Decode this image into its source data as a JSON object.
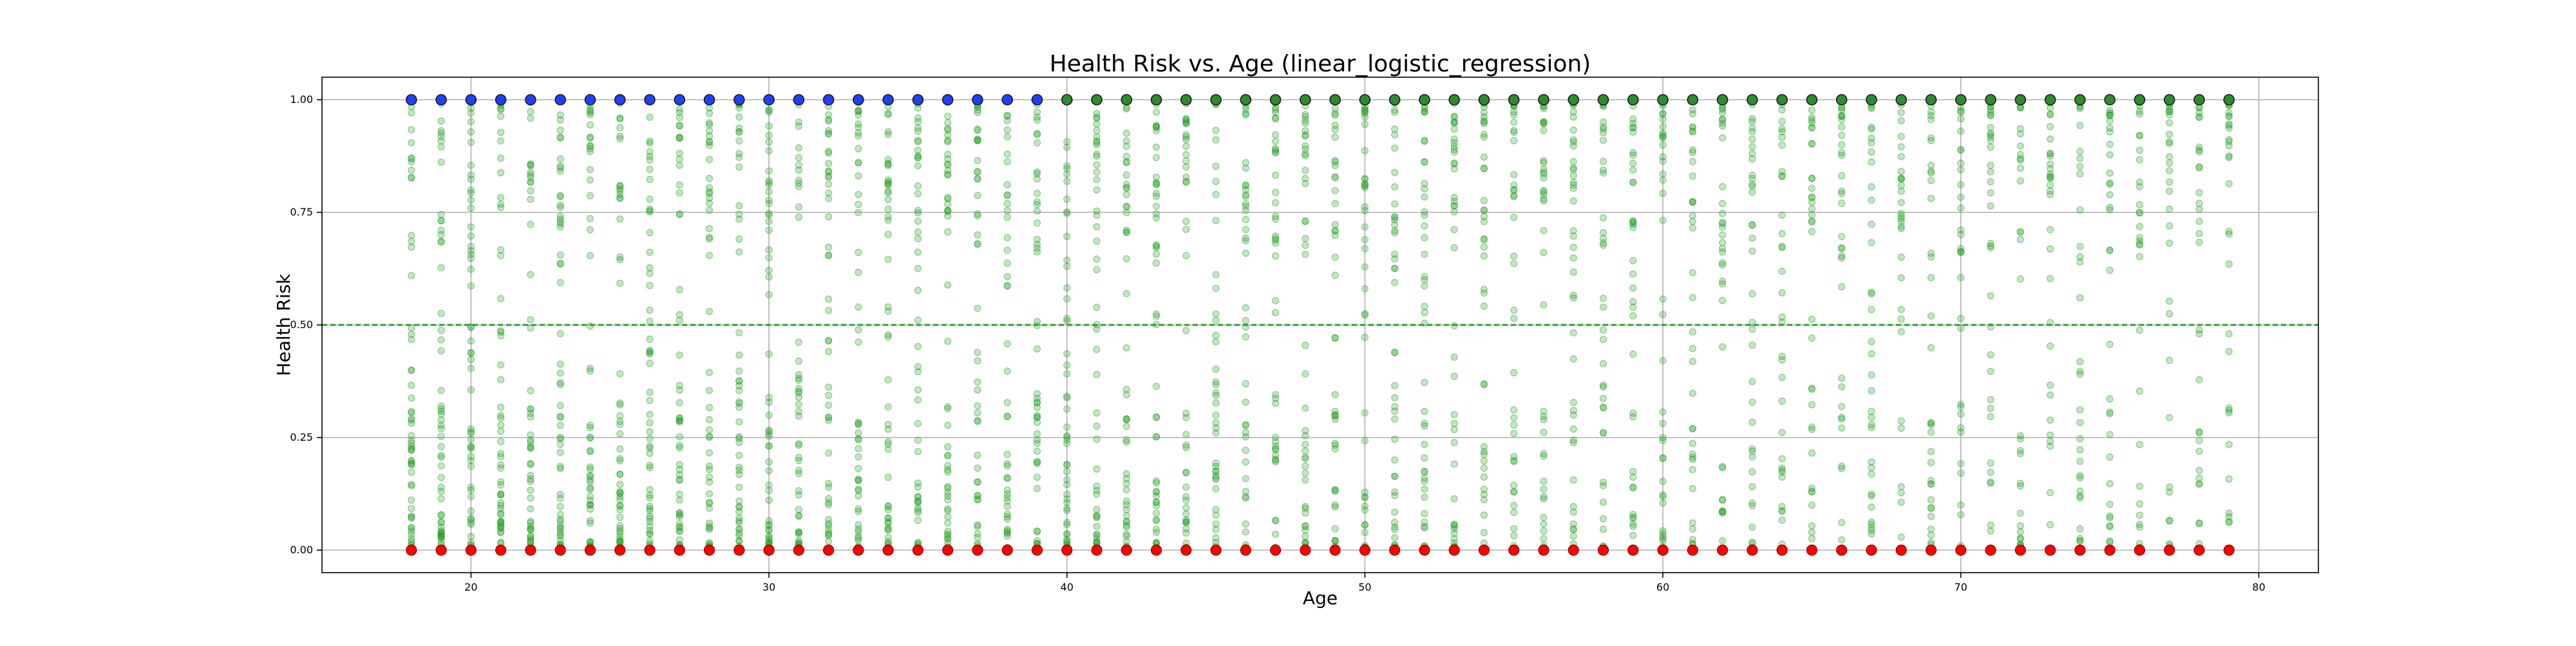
{
  "chart_data": {
    "type": "scatter",
    "title": "Health Risk vs. Age (linear_logistic_regression)",
    "xlabel": "Age",
    "ylabel": "Health Risk",
    "xlim": [
      15,
      82
    ],
    "ylim": [
      -0.05,
      1.05
    ],
    "x_ticks": [
      20,
      30,
      40,
      50,
      60,
      70,
      80
    ],
    "x_tick_labels": [
      "20",
      "30",
      "40",
      "50",
      "60",
      "70",
      "80"
    ],
    "y_ticks": [
      0.0,
      0.25,
      0.5,
      0.75,
      1.0
    ],
    "y_tick_labels": [
      "0.00",
      "0.25",
      "0.50",
      "0.75",
      "1.00"
    ],
    "grid": true,
    "legend": "none",
    "threshold": {
      "y": 0.5,
      "color": "#2ca02c",
      "style": "dashed"
    },
    "ages": [
      18,
      19,
      20,
      21,
      22,
      23,
      24,
      25,
      26,
      27,
      28,
      29,
      30,
      31,
      32,
      33,
      34,
      35,
      36,
      37,
      38,
      39,
      40,
      41,
      42,
      43,
      44,
      45,
      46,
      47,
      48,
      49,
      50,
      51,
      52,
      53,
      54,
      55,
      56,
      57,
      58,
      59,
      60,
      61,
      62,
      63,
      64,
      65,
      66,
      67,
      68,
      69,
      70,
      71,
      72,
      73,
      74,
      75,
      76,
      77,
      78,
      79
    ],
    "colors": {
      "predicted": "#2ca02c",
      "actual_high": "#1f3fff",
      "actual_low": "#ff0000",
      "actual_high_late": "#2e8b2e"
    },
    "series": [
      {
        "kind": "predicted",
        "color": "#2ca02c",
        "opacity": 0.3,
        "description": "predicted probability per sample, spread across 0–1 at each age, denser near 0 for young ages and near 1 for older ages"
      },
      {
        "kind": "actual",
        "values_y": [
          1.0,
          0.0
        ],
        "marker": "circle-edge"
      }
    ]
  }
}
